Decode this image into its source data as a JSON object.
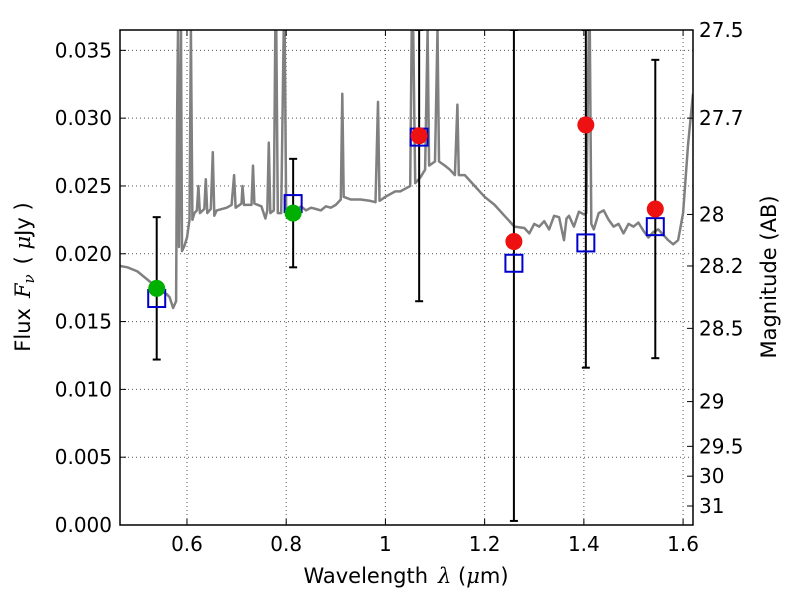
{
  "chart_data": {
    "type": "scatter",
    "xlabel": "Wavelength",
    "xlabel_symbol": "λ",
    "xlabel_unit_open": " (",
    "xlabel_unit_mu": "μ",
    "xlabel_unit_close": "m)",
    "ylabel": "Flux",
    "ylabel_symbol": "F",
    "ylabel_subscript": "ν",
    "ylabel_unit_open": "( ",
    "ylabel_unit_mu": "μ",
    "ylabel_unit_close": "Jy )",
    "y2label": "Magnitude (AB)",
    "xlim": [
      0.465,
      1.62
    ],
    "ylim": [
      0.0,
      0.0365
    ],
    "grid": true,
    "x_ticks": [
      {
        "value": 0.6,
        "label": "0.6"
      },
      {
        "value": 0.8,
        "label": "0.8"
      },
      {
        "value": 1.0,
        "label": "1"
      },
      {
        "value": 1.2,
        "label": "1.2"
      },
      {
        "value": 1.4,
        "label": "1.4"
      },
      {
        "value": 1.6,
        "label": "1.6"
      }
    ],
    "y_ticks": [
      {
        "value": 0.0,
        "label": "0.000"
      },
      {
        "value": 0.005,
        "label": "0.005"
      },
      {
        "value": 0.01,
        "label": "0.010"
      },
      {
        "value": 0.015,
        "label": "0.015"
      },
      {
        "value": 0.02,
        "label": "0.020"
      },
      {
        "value": 0.025,
        "label": "0.025"
      },
      {
        "value": 0.03,
        "label": "0.030"
      },
      {
        "value": 0.035,
        "label": "0.035"
      }
    ],
    "y2_ticks": [
      {
        "flux": 0.0365,
        "label": "27.5"
      },
      {
        "flux": 0.03,
        "label": "27.7"
      },
      {
        "flux": 0.0229,
        "label": "28"
      },
      {
        "flux": 0.0191,
        "label": "28.2"
      },
      {
        "flux": 0.0145,
        "label": "28.5"
      },
      {
        "flux": 0.0091,
        "label": "29"
      },
      {
        "flux": 0.0058,
        "label": "29.5"
      },
      {
        "flux": 0.0036,
        "label": "30"
      },
      {
        "flux": 0.0014,
        "label": "31"
      }
    ],
    "model_sed": {
      "name": "model spectrum",
      "color": "#808080",
      "points": [
        [
          0.465,
          0.0191
        ],
        [
          0.48,
          0.019
        ],
        [
          0.5,
          0.0187
        ],
        [
          0.52,
          0.0181
        ],
        [
          0.54,
          0.0175
        ],
        [
          0.55,
          0.0172
        ],
        [
          0.56,
          0.017
        ],
        [
          0.565,
          0.0168
        ],
        [
          0.572,
          0.016
        ],
        [
          0.578,
          0.0165
        ],
        [
          0.58,
          0.03
        ],
        [
          0.582,
          0.0365
        ],
        [
          0.584,
          0.0205
        ],
        [
          0.588,
          0.0365
        ],
        [
          0.59,
          0.0202
        ],
        [
          0.595,
          0.0206
        ],
        [
          0.6,
          0.0212
        ],
        [
          0.605,
          0.0225
        ],
        [
          0.608,
          0.0365
        ],
        [
          0.611,
          0.0225
        ],
        [
          0.615,
          0.023
        ],
        [
          0.62,
          0.0232
        ],
        [
          0.623,
          0.025
        ],
        [
          0.626,
          0.023
        ],
        [
          0.635,
          0.0233
        ],
        [
          0.638,
          0.0255
        ],
        [
          0.641,
          0.023
        ],
        [
          0.648,
          0.0233
        ],
        [
          0.652,
          0.0275
        ],
        [
          0.655,
          0.0228
        ],
        [
          0.66,
          0.0232
        ],
        [
          0.68,
          0.0234
        ],
        [
          0.69,
          0.0236
        ],
        [
          0.695,
          0.0258
        ],
        [
          0.698,
          0.0234
        ],
        [
          0.71,
          0.0237
        ],
        [
          0.712,
          0.025
        ],
        [
          0.715,
          0.0236
        ],
        [
          0.73,
          0.0236
        ],
        [
          0.733,
          0.0265
        ],
        [
          0.736,
          0.0237
        ],
        [
          0.75,
          0.0235
        ],
        [
          0.758,
          0.0226
        ],
        [
          0.762,
          0.0232
        ],
        [
          0.765,
          0.0282
        ],
        [
          0.768,
          0.023
        ],
        [
          0.775,
          0.0232
        ],
        [
          0.778,
          0.0365
        ],
        [
          0.78,
          0.0365
        ],
        [
          0.783,
          0.023
        ],
        [
          0.79,
          0.023
        ],
        [
          0.795,
          0.0365
        ],
        [
          0.797,
          0.0365
        ],
        [
          0.8,
          0.0228
        ],
        [
          0.81,
          0.023
        ],
        [
          0.82,
          0.0232
        ],
        [
          0.83,
          0.0235
        ],
        [
          0.84,
          0.0232
        ],
        [
          0.85,
          0.0234
        ],
        [
          0.86,
          0.0233
        ],
        [
          0.87,
          0.0232
        ],
        [
          0.88,
          0.0235
        ],
        [
          0.89,
          0.0234
        ],
        [
          0.9,
          0.0236
        ],
        [
          0.91,
          0.024
        ],
        [
          0.913,
          0.0318
        ],
        [
          0.916,
          0.0242
        ],
        [
          0.93,
          0.024
        ],
        [
          0.95,
          0.024
        ],
        [
          0.97,
          0.0239
        ],
        [
          0.98,
          0.0238
        ],
        [
          0.985,
          0.0312
        ],
        [
          0.988,
          0.0239
        ],
        [
          1.0,
          0.0242
        ],
        [
          1.02,
          0.0246
        ],
        [
          1.03,
          0.0246
        ],
        [
          1.04,
          0.0248
        ],
        [
          1.05,
          0.025
        ],
        [
          1.053,
          0.0365
        ],
        [
          1.056,
          0.0365
        ],
        [
          1.06,
          0.0252
        ],
        [
          1.07,
          0.0256
        ],
        [
          1.08,
          0.0262
        ],
        [
          1.085,
          0.0365
        ],
        [
          1.088,
          0.0265
        ],
        [
          1.1,
          0.0268
        ],
        [
          1.105,
          0.0365
        ],
        [
          1.108,
          0.0268
        ],
        [
          1.12,
          0.0265
        ],
        [
          1.13,
          0.0262
        ],
        [
          1.14,
          0.0258
        ],
        [
          1.145,
          0.031
        ],
        [
          1.148,
          0.0258
        ],
        [
          1.16,
          0.0258
        ],
        [
          1.18,
          0.025
        ],
        [
          1.2,
          0.0242
        ],
        [
          1.22,
          0.0236
        ],
        [
          1.24,
          0.0228
        ],
        [
          1.26,
          0.022
        ],
        [
          1.28,
          0.0219
        ],
        [
          1.29,
          0.0215
        ],
        [
          1.3,
          0.0222
        ],
        [
          1.31,
          0.022
        ],
        [
          1.32,
          0.0224
        ],
        [
          1.33,
          0.0218
        ],
        [
          1.34,
          0.0228
        ],
        [
          1.35,
          0.0227
        ],
        [
          1.36,
          0.021
        ],
        [
          1.365,
          0.0226
        ],
        [
          1.37,
          0.0228
        ],
        [
          1.38,
          0.022
        ],
        [
          1.39,
          0.0231
        ],
        [
          1.4,
          0.0229
        ],
        [
          1.405,
          0.023
        ],
        [
          1.41,
          0.0365
        ],
        [
          1.412,
          0.0365
        ],
        [
          1.415,
          0.0222
        ],
        [
          1.42,
          0.0218
        ],
        [
          1.43,
          0.023
        ],
        [
          1.44,
          0.0232
        ],
        [
          1.45,
          0.0225
        ],
        [
          1.46,
          0.022
        ],
        [
          1.47,
          0.0222
        ],
        [
          1.48,
          0.0215
        ],
        [
          1.49,
          0.0222
        ],
        [
          1.5,
          0.022
        ],
        [
          1.51,
          0.0223
        ],
        [
          1.52,
          0.0217
        ],
        [
          1.53,
          0.0212
        ],
        [
          1.54,
          0.0216
        ],
        [
          1.55,
          0.0218
        ],
        [
          1.56,
          0.0214
        ],
        [
          1.57,
          0.021
        ],
        [
          1.58,
          0.0207
        ],
        [
          1.59,
          0.021
        ],
        [
          1.6,
          0.023
        ],
        [
          1.61,
          0.028
        ],
        [
          1.62,
          0.0318
        ]
      ]
    },
    "observed": [
      {
        "x": 0.539,
        "y": 0.01745,
        "yerr_low": 0.0122,
        "yerr_high": 0.0227,
        "marker": "green"
      },
      {
        "x": 0.814,
        "y": 0.023,
        "yerr_low": 0.019,
        "yerr_high": 0.027,
        "marker": "green"
      },
      {
        "x": 1.068,
        "y": 0.0287,
        "yerr_low": 0.0165,
        "yerr_high": 0.0365,
        "marker": "red"
      },
      {
        "x": 1.259,
        "y": 0.0209,
        "yerr_low": 0.0003,
        "yerr_high": 0.0365,
        "marker": "red"
      },
      {
        "x": 1.404,
        "y": 0.0295,
        "yerr_low": 0.0116,
        "yerr_high": 0.0365,
        "marker": "red"
      },
      {
        "x": 1.544,
        "y": 0.0233,
        "yerr_low": 0.0123,
        "yerr_high": 0.0343,
        "marker": "red"
      }
    ],
    "model_bands": [
      {
        "x": 0.539,
        "y": 0.0167
      },
      {
        "x": 0.814,
        "y": 0.0237
      },
      {
        "x": 1.068,
        "y": 0.0286
      },
      {
        "x": 1.259,
        "y": 0.0193
      },
      {
        "x": 1.404,
        "y": 0.0208
      },
      {
        "x": 1.544,
        "y": 0.022
      }
    ],
    "colors": {
      "green": "#00b000",
      "red": "#ee1111",
      "square": "#0000cc",
      "errorbar": "#000000",
      "sed": "#808080",
      "grid": "#555555"
    }
  }
}
